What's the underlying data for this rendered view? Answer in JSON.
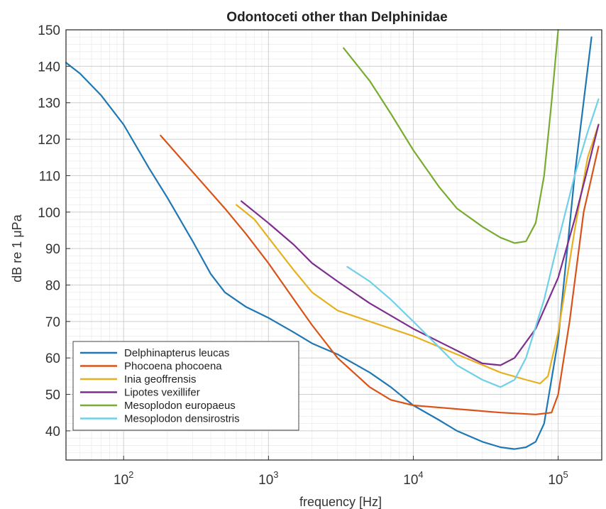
{
  "chart_data": {
    "type": "line",
    "title": "Odontoceti other than Delphinidae",
    "xlabel": "frequency [Hz]",
    "ylabel": "dB re 1 μPa",
    "x_scale": "log",
    "xlim": [
      40,
      200000
    ],
    "ylim": [
      32,
      150
    ],
    "x_ticks": [
      100,
      1000,
      10000,
      100000
    ],
    "x_tick_labels": [
      {
        "base": "10",
        "exp": "2"
      },
      {
        "base": "10",
        "exp": "3"
      },
      {
        "base": "10",
        "exp": "4"
      },
      {
        "base": "10",
        "exp": "5"
      }
    ],
    "y_ticks": [
      40,
      50,
      60,
      70,
      80,
      90,
      100,
      110,
      120,
      130,
      140,
      150
    ],
    "grid": true,
    "legend_position": "lower-left",
    "series": [
      {
        "name": "Delphinapterus leucas",
        "color": "#1f77b4",
        "points": [
          [
            40,
            141
          ],
          [
            50,
            138
          ],
          [
            70,
            132
          ],
          [
            100,
            124
          ],
          [
            150,
            112
          ],
          [
            200,
            104
          ],
          [
            300,
            92
          ],
          [
            400,
            83
          ],
          [
            500,
            78
          ],
          [
            700,
            74
          ],
          [
            1000,
            71
          ],
          [
            1500,
            67
          ],
          [
            2000,
            64
          ],
          [
            3000,
            61
          ],
          [
            5000,
            56
          ],
          [
            7000,
            52
          ],
          [
            10000,
            47
          ],
          [
            15000,
            43
          ],
          [
            20000,
            40
          ],
          [
            30000,
            37
          ],
          [
            40000,
            35.5
          ],
          [
            50000,
            35
          ],
          [
            60000,
            35.5
          ],
          [
            70000,
            37
          ],
          [
            80000,
            42
          ],
          [
            100000,
            65
          ],
          [
            130000,
            110
          ],
          [
            170000,
            148
          ]
        ]
      },
      {
        "name": "Phocoena phocoena",
        "color": "#d95319",
        "points": [
          [
            180,
            121
          ],
          [
            300,
            111
          ],
          [
            500,
            101
          ],
          [
            700,
            94
          ],
          [
            1000,
            86
          ],
          [
            1500,
            76
          ],
          [
            2000,
            69
          ],
          [
            3000,
            60
          ],
          [
            5000,
            52
          ],
          [
            7000,
            48.5
          ],
          [
            10000,
            47
          ],
          [
            20000,
            46
          ],
          [
            40000,
            45
          ],
          [
            70000,
            44.5
          ],
          [
            90000,
            45
          ],
          [
            100000,
            50
          ],
          [
            120000,
            70
          ],
          [
            150000,
            100
          ],
          [
            190000,
            118
          ]
        ]
      },
      {
        "name": "Inia geoffrensis",
        "color": "#e6b020",
        "points": [
          [
            600,
            102
          ],
          [
            800,
            98
          ],
          [
            1000,
            93
          ],
          [
            1500,
            84
          ],
          [
            2000,
            78
          ],
          [
            3000,
            73
          ],
          [
            5000,
            70
          ],
          [
            10000,
            66
          ],
          [
            20000,
            61
          ],
          [
            40000,
            56
          ],
          [
            60000,
            54
          ],
          [
            75000,
            53
          ],
          [
            85000,
            55
          ],
          [
            100000,
            67
          ],
          [
            130000,
            95
          ],
          [
            160000,
            115
          ],
          [
            190000,
            124
          ]
        ]
      },
      {
        "name": "Lipotes vexillifer",
        "color": "#7e2f8e",
        "points": [
          [
            650,
            103
          ],
          [
            1000,
            97
          ],
          [
            1500,
            91
          ],
          [
            2000,
            86
          ],
          [
            3000,
            81
          ],
          [
            5000,
            75
          ],
          [
            10000,
            68
          ],
          [
            20000,
            62
          ],
          [
            30000,
            58.5
          ],
          [
            40000,
            58
          ],
          [
            50000,
            60
          ],
          [
            70000,
            68
          ],
          [
            100000,
            82
          ],
          [
            130000,
            98
          ],
          [
            160000,
            112
          ],
          [
            190000,
            124
          ]
        ]
      },
      {
        "name": "Mesoplodon europaeus",
        "color": "#77ac30",
        "points": [
          [
            3300,
            145
          ],
          [
            5000,
            136
          ],
          [
            7000,
            127
          ],
          [
            10000,
            117
          ],
          [
            15000,
            107
          ],
          [
            20000,
            101
          ],
          [
            30000,
            96
          ],
          [
            40000,
            93
          ],
          [
            50000,
            91.5
          ],
          [
            60000,
            92
          ],
          [
            70000,
            97
          ],
          [
            80000,
            110
          ],
          [
            90000,
            130
          ],
          [
            100000,
            150
          ]
        ]
      },
      {
        "name": "Mesoplodon densirostris",
        "color": "#6fd0e8",
        "points": [
          [
            3500,
            85
          ],
          [
            5000,
            81
          ],
          [
            7000,
            76
          ],
          [
            10000,
            70
          ],
          [
            15000,
            63
          ],
          [
            20000,
            58
          ],
          [
            30000,
            54
          ],
          [
            40000,
            52
          ],
          [
            50000,
            54
          ],
          [
            60000,
            60
          ],
          [
            80000,
            76
          ],
          [
            100000,
            92
          ],
          [
            130000,
            110
          ],
          [
            160000,
            122
          ],
          [
            190000,
            131
          ]
        ]
      }
    ]
  }
}
